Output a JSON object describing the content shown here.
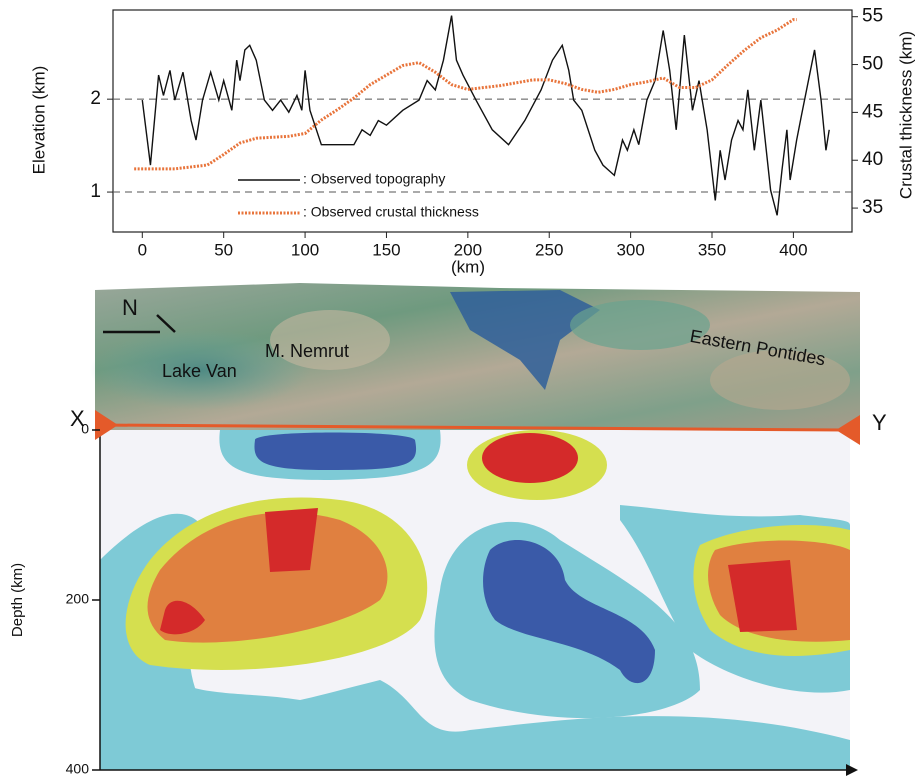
{
  "chart_data": [
    {
      "type": "line",
      "xlabel": "(km)",
      "ylabel": "Elevation (km)",
      "y2label": "Crustal thickness (km)",
      "xlim": [
        -18,
        436
      ],
      "ylim": [
        0.57,
        2.96
      ],
      "y2lim": [
        32.5,
        55.7
      ],
      "xticks": [
        0,
        50,
        100,
        150,
        200,
        250,
        300,
        350,
        400
      ],
      "yticks": [
        1,
        2
      ],
      "y2ticks": [
        35,
        40,
        45,
        50,
        55
      ],
      "grid": true,
      "legend": "lower left",
      "series": [
        {
          "name": ": Observed topography",
          "color": "#111111",
          "axis": "y",
          "line_style": "solid",
          "x": [
            0,
            5,
            10,
            13,
            17,
            20,
            25,
            30,
            33,
            37,
            42,
            47,
            50,
            55,
            58,
            60,
            63,
            66,
            70,
            75,
            80,
            85,
            90,
            95,
            98,
            100,
            103,
            110,
            120,
            130,
            135,
            140,
            145,
            150,
            160,
            170,
            175,
            180,
            185,
            190,
            193,
            197,
            205,
            215,
            225,
            235,
            245,
            252,
            258,
            262,
            265,
            270,
            278,
            283,
            290,
            295,
            298,
            302,
            305,
            310,
            315,
            320,
            324,
            328,
            333,
            338,
            342,
            347,
            352,
            355,
            358,
            362,
            366,
            369,
            372,
            376,
            380,
            386,
            390,
            393,
            396,
            398,
            402,
            405,
            413,
            417,
            420,
            422
          ],
          "values": [
            1.99,
            1.29,
            2.26,
            2.04,
            2.31,
            1.99,
            2.29,
            1.77,
            1.56,
            1.99,
            2.29,
            1.99,
            2.2,
            1.88,
            2.42,
            2.2,
            2.53,
            2.58,
            2.42,
            1.99,
            1.88,
            1.99,
            1.86,
            2.04,
            1.88,
            2.31,
            1.88,
            1.51,
            1.51,
            1.51,
            1.67,
            1.61,
            1.77,
            1.72,
            1.88,
            1.99,
            2.2,
            2.1,
            2.42,
            2.9,
            2.42,
            2.26,
            1.99,
            1.67,
            1.51,
            1.77,
            2.1,
            2.42,
            2.58,
            2.31,
            1.99,
            1.88,
            1.45,
            1.29,
            1.18,
            1.56,
            1.45,
            1.67,
            1.51,
            1.99,
            2.2,
            2.74,
            2.31,
            1.67,
            2.69,
            1.88,
            2.2,
            1.67,
            0.91,
            1.45,
            1.13,
            1.56,
            1.77,
            1.67,
            2.1,
            1.45,
            1.99,
            1.02,
            0.75,
            1.24,
            1.67,
            1.13,
            1.56,
            1.83,
            2.53,
            1.99,
            1.45,
            1.67
          ]
        },
        {
          "name": ": Observed crustal thickness",
          "color": "#e8743b",
          "axis": "y2",
          "line_style": "dotted",
          "x": [
            -5,
            20,
            30,
            40,
            50,
            60,
            70,
            90,
            100,
            110,
            120,
            130,
            140,
            150,
            160,
            170,
            180,
            190,
            200,
            210,
            220,
            230,
            240,
            250,
            260,
            270,
            280,
            290,
            300,
            310,
            320,
            330,
            340,
            350,
            360,
            370,
            380,
            390,
            400,
            402
          ],
          "values": [
            39.1,
            39.1,
            39.3,
            39.5,
            40.6,
            41.8,
            42.3,
            42.5,
            42.8,
            44.2,
            45.3,
            46.5,
            47.9,
            48.9,
            49.9,
            50.2,
            49.2,
            47.9,
            47.4,
            47.6,
            47.8,
            48.1,
            48.4,
            48.4,
            48.0,
            47.4,
            47.1,
            47.4,
            47.9,
            48.2,
            48.6,
            47.6,
            47.6,
            48.4,
            50.0,
            51.5,
            52.8,
            53.6,
            54.7,
            54.7
          ]
        }
      ]
    },
    {
      "type": "section",
      "ylabel": "Depth (km)",
      "ylim": [
        0,
        400
      ],
      "yticks": [
        0,
        200,
        400
      ],
      "annotations": [
        "N",
        "Lake Van",
        "M. Nemrut",
        "Eastern Pontides",
        "X",
        "Y"
      ]
    }
  ]
}
